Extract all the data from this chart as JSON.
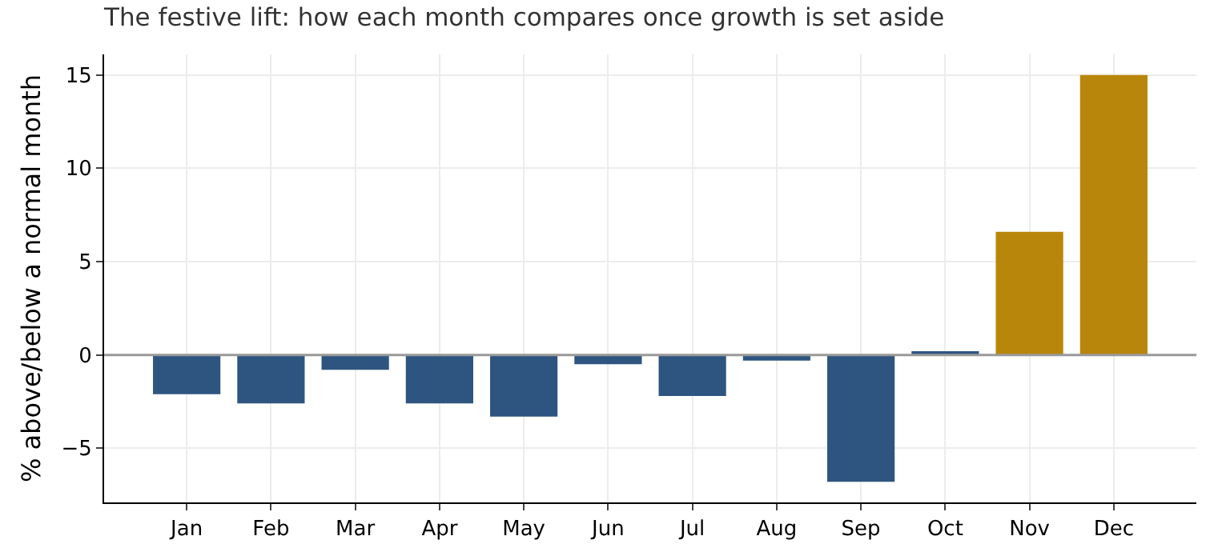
{
  "chart_data": {
    "type": "bar",
    "title": "The festive lift: how each month compares once growth is set aside",
    "ylabel": "% above/below a normal month",
    "categories": [
      "Jan",
      "Feb",
      "Mar",
      "Apr",
      "May",
      "Jun",
      "Jul",
      "Aug",
      "Sep",
      "Oct",
      "Nov",
      "Dec"
    ],
    "values": [
      -2.1,
      -2.6,
      -0.8,
      -2.6,
      -3.3,
      -0.5,
      -2.2,
      -0.3,
      -6.8,
      0.2,
      6.6,
      15
    ],
    "colors": [
      "#2e5580",
      "#2e5580",
      "#2e5580",
      "#2e5580",
      "#2e5580",
      "#2e5580",
      "#2e5580",
      "#2e5580",
      "#2e5580",
      "#2e5580",
      "#b8860b",
      "#b8860b"
    ],
    "ylim": [
      -7.9,
      16.1
    ],
    "yticks": [
      {
        "value": -5,
        "label": "−5"
      },
      0,
      5,
      10,
      15
    ],
    "ref_lines": [
      {
        "axis": "y",
        "value": 0,
        "color": "#999999"
      }
    ],
    "grid": true
  }
}
